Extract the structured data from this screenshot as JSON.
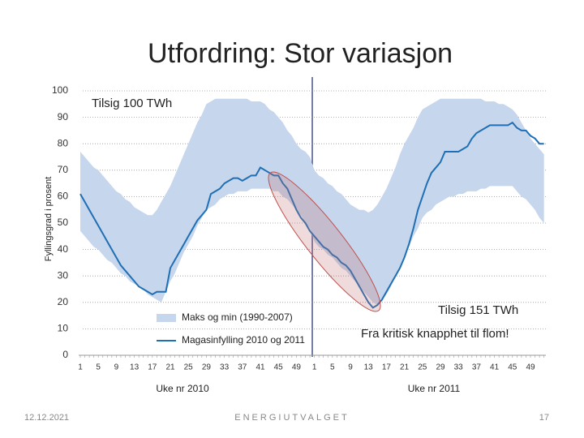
{
  "chart_data": {
    "type": "line",
    "title": "Utfordring: Stor variasjon",
    "y_label": "Fyllingsgrad i prosent",
    "x_labels": [
      "Uke nr 2010",
      "Uke nr 2011"
    ],
    "annotations": [
      "Tilsig 100 TWh",
      "Tilsig 151 TWh",
      "Fra kritisk knapphet til flom!"
    ],
    "footer": {
      "date": "12.12.2021",
      "org": "ENERGIUTVALGET",
      "page": "17"
    },
    "ylim": [
      0,
      100
    ],
    "yticks": [
      0,
      10,
      20,
      30,
      40,
      50,
      60,
      70,
      80,
      90,
      100
    ],
    "grid": true,
    "categories": [
      "1",
      null,
      null,
      null,
      "5",
      null,
      null,
      null,
      "9",
      null,
      null,
      null,
      "13",
      null,
      null,
      null,
      "17",
      null,
      null,
      null,
      "21",
      null,
      null,
      null,
      "25",
      null,
      null,
      null,
      "29",
      null,
      null,
      null,
      "33",
      null,
      null,
      null,
      "37",
      null,
      null,
      null,
      "41",
      null,
      null,
      null,
      "45",
      null,
      null,
      null,
      "49",
      null,
      null,
      null,
      "1",
      null,
      null,
      null,
      "5",
      null,
      null,
      null,
      "9",
      null,
      null,
      null,
      "13",
      null,
      null,
      null,
      "17",
      null,
      null,
      null,
      "21",
      null,
      null,
      null,
      "25",
      null,
      null,
      null,
      "29",
      null,
      null,
      null,
      "33",
      null,
      null,
      null,
      "37",
      null,
      null,
      null,
      "41",
      null,
      null,
      null,
      "45",
      null,
      null,
      null,
      "49",
      null,
      null,
      null
    ],
    "series": [
      {
        "name": "Maks og min (1990-2007)",
        "type": "band",
        "color": "#c6d6ec",
        "upper": [
          77,
          75,
          73,
          71,
          70,
          68,
          66,
          64,
          62,
          61,
          59,
          58,
          56,
          55,
          54,
          53,
          53,
          55,
          58,
          61,
          64,
          68,
          72,
          76,
          80,
          84,
          88,
          91,
          95,
          96,
          97,
          97,
          97,
          97,
          97,
          97,
          97,
          97,
          96,
          96,
          96,
          95,
          93,
          92,
          90,
          88,
          85,
          83,
          80,
          78,
          77,
          75,
          70,
          68,
          67,
          65,
          64,
          62,
          61,
          59,
          57,
          56,
          55,
          55,
          54,
          55,
          57,
          60,
          63,
          67,
          71,
          76,
          80,
          83,
          86,
          90,
          93,
          94,
          95,
          96,
          97,
          97,
          97,
          97,
          97,
          97,
          97,
          97,
          97,
          97,
          96,
          96,
          96,
          95,
          95,
          94,
          93,
          91,
          88,
          85,
          82,
          80,
          78,
          76
        ],
        "lower": [
          47,
          45,
          43,
          41,
          40,
          38,
          36,
          35,
          33,
          31,
          30,
          28,
          27,
          26,
          25,
          23,
          22,
          21,
          20,
          24,
          28,
          31,
          35,
          39,
          42,
          45,
          49,
          52,
          55,
          56,
          57,
          59,
          60,
          61,
          61,
          62,
          62,
          62,
          63,
          63,
          63,
          63,
          63,
          62,
          62,
          60,
          59,
          57,
          55,
          53,
          50,
          48,
          43,
          41,
          40,
          38,
          37,
          35,
          33,
          32,
          30,
          28,
          26,
          24,
          22,
          20,
          19,
          21,
          23,
          26,
          30,
          33,
          37,
          41,
          45,
          48,
          52,
          54,
          55,
          57,
          58,
          59,
          60,
          60,
          61,
          61,
          62,
          62,
          62,
          63,
          63,
          64,
          64,
          64,
          64,
          64,
          64,
          62,
          60,
          59,
          57,
          55,
          52,
          50
        ]
      },
      {
        "name": "Magasinfylling 2010 og 2011",
        "color": "#1f6fb4",
        "values": [
          61,
          58,
          55,
          52,
          49,
          46,
          43,
          40,
          37,
          34,
          32,
          30,
          28,
          26,
          25,
          24,
          23,
          24,
          24,
          24,
          33,
          36,
          39,
          42,
          45,
          48,
          51,
          53,
          55,
          61,
          62,
          63,
          65,
          66,
          67,
          67,
          66,
          67,
          68,
          68,
          71,
          70,
          69,
          68,
          68,
          65,
          63,
          59,
          55,
          52,
          50,
          47,
          45,
          43,
          41,
          40,
          38,
          37,
          35,
          34,
          32,
          29,
          26,
          23,
          20,
          18,
          19,
          21,
          24,
          27,
          30,
          33,
          37,
          42,
          48,
          55,
          60,
          65,
          69,
          71,
          73,
          77,
          77,
          77,
          77,
          78,
          79,
          82,
          84,
          85,
          86,
          87,
          87,
          87,
          87,
          87,
          88,
          86,
          85,
          85,
          83,
          82,
          80,
          80
        ]
      }
    ]
  }
}
